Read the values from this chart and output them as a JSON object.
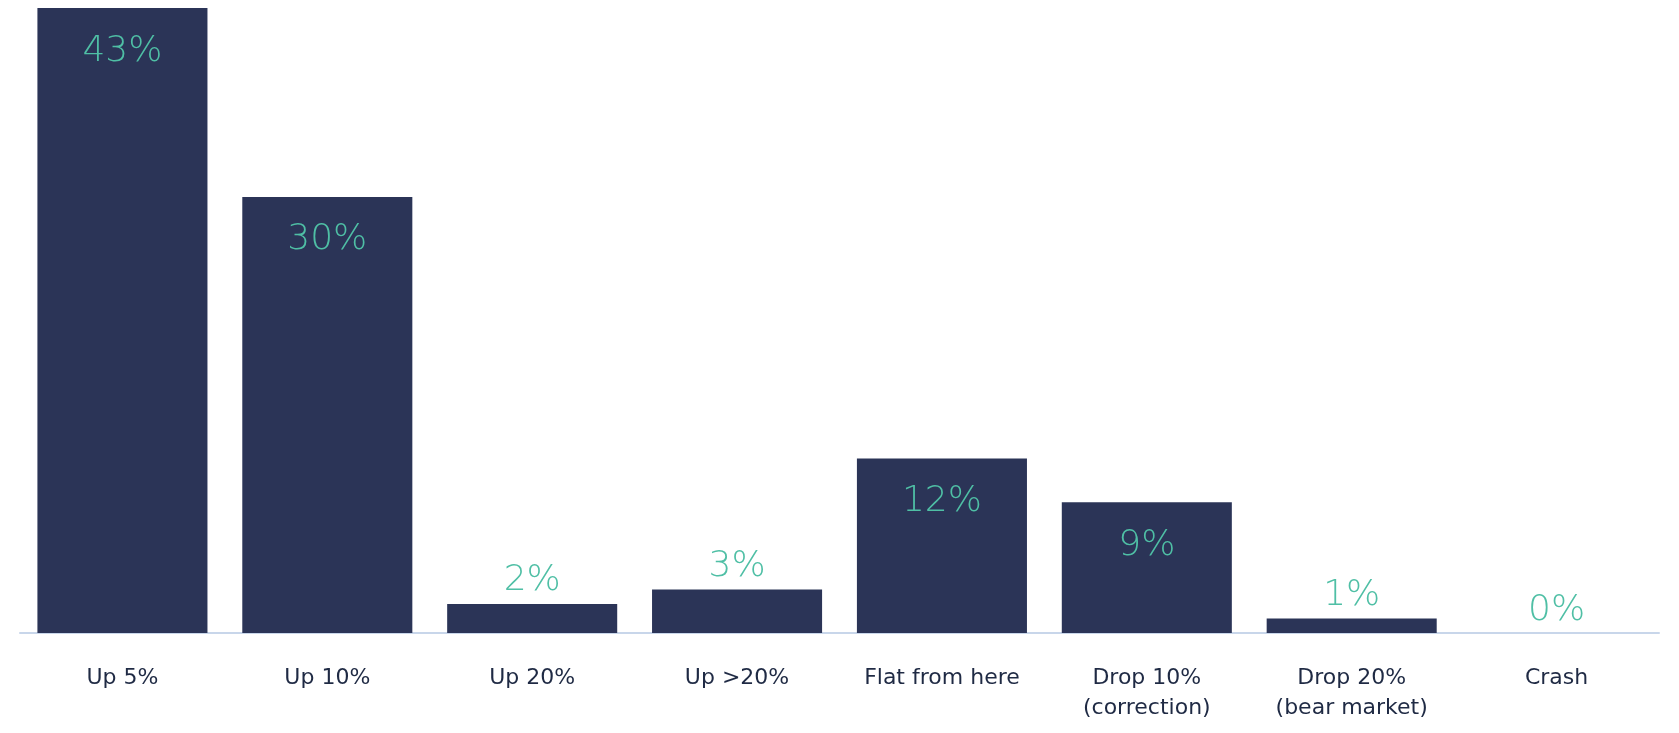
{
  "chart_data": {
    "type": "bar",
    "categories": [
      "Up 5%",
      "Up 10%",
      "Up 20%",
      "Up >20%",
      "Flat from here",
      "Drop 10%\n(correction)",
      "Drop 20%\n(bear market)",
      "Crash"
    ],
    "values": [
      43,
      30,
      2,
      3,
      12,
      9,
      1,
      0
    ],
    "value_labels": [
      "43%",
      "30%",
      "2%",
      "3%",
      "12%",
      "9%",
      "1%",
      "0%"
    ],
    "color": "#2b3457"
  }
}
